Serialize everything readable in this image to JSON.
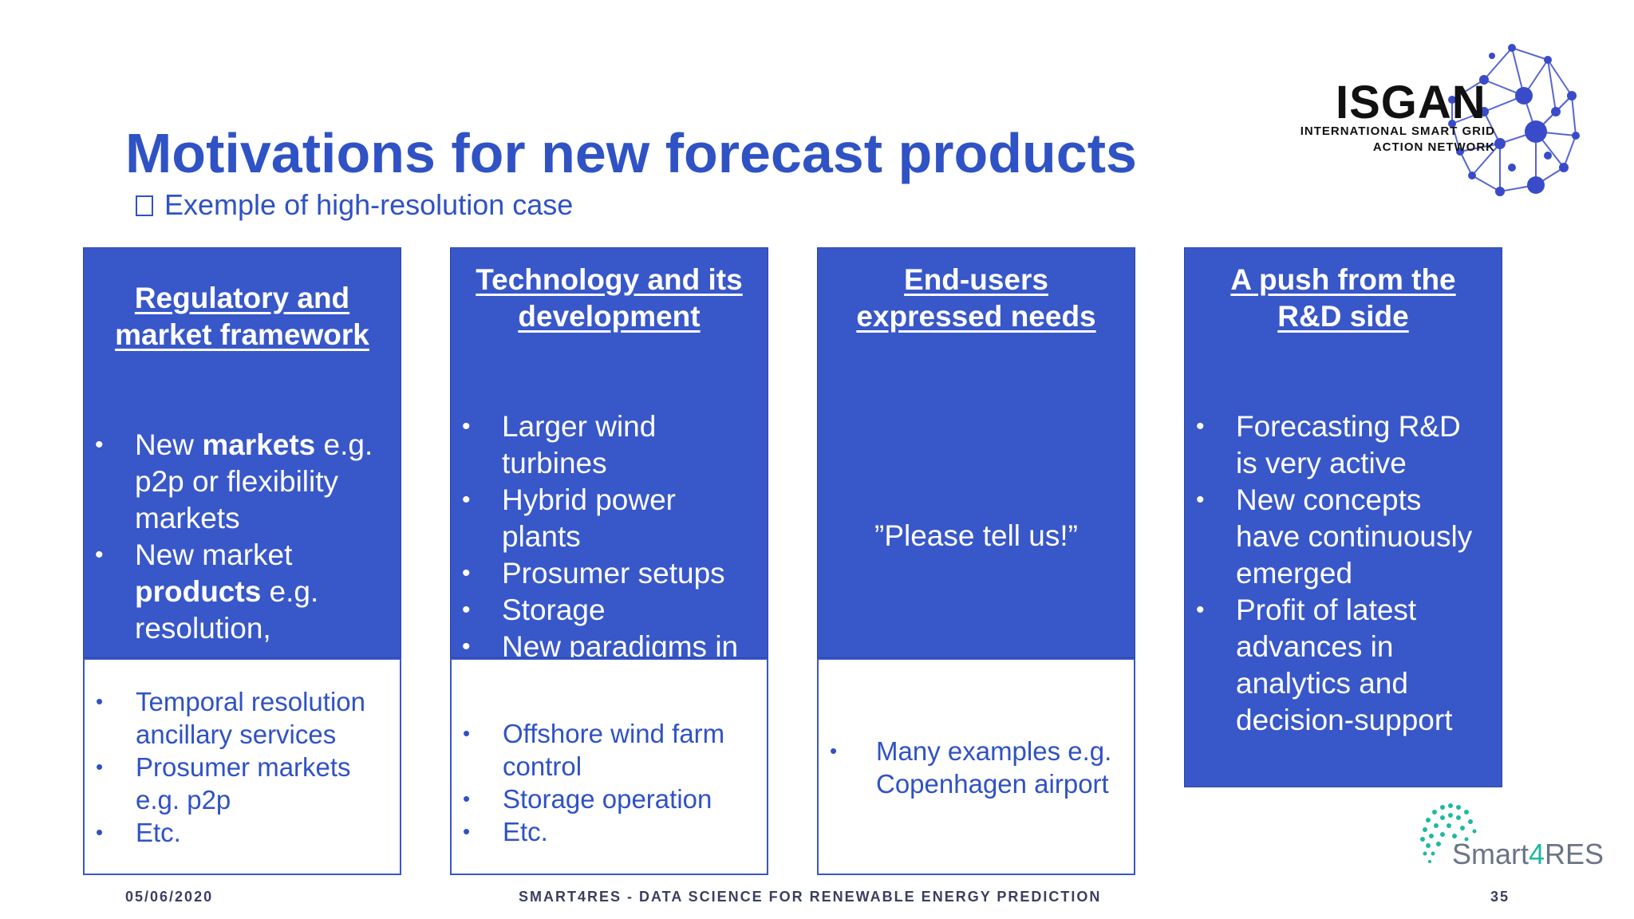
{
  "slide": {
    "title": "Motivations for new forecast products",
    "subtitle": "Exemple of high-resolution case"
  },
  "logo": {
    "name": "ISGAN",
    "tagline_line1": "INTERNATIONAL SMART GRID",
    "tagline_line2": "ACTION NETWORK"
  },
  "columns": [
    {
      "heading_line1": "Regulatory and",
      "heading_line2": "market framework",
      "bullets": [
        {
          "line1_pre": "New ",
          "line1_bold": "markets",
          "line1_post": " e.g.",
          "line2": "p2p or flexibility",
          "line3": "markets"
        },
        {
          "line1": "New market",
          "line2_bold": "products",
          "line2_post": " e.g.",
          "line3": "resolution,"
        }
      ],
      "examples": [
        "Temporal resolution",
        "ancillary services",
        "Prosumer markets",
        "e.g. p2p",
        "Etc."
      ]
    },
    {
      "heading_line1": "Technology and its",
      "heading_line2": "development",
      "bullets": [
        {
          "line1": "Larger wind",
          "line2": "turbines"
        },
        {
          "line1": "Hybrid power",
          "line2": "plants"
        },
        {
          "line1": "Prosumer setups"
        },
        {
          "line1": "Storage"
        },
        {
          "line1": "New paradigms in"
        }
      ],
      "examples": [
        "Offshore wind farm",
        "control",
        "Storage operation",
        "Etc."
      ]
    },
    {
      "heading_line1": "End-users",
      "heading_line2": "expressed needs",
      "quote": "”Please tell us!”",
      "examples": [
        "Many examples e.g.",
        "Copenhagen airport"
      ]
    },
    {
      "heading_line1": "A push from the",
      "heading_line2": "R&D side",
      "bullets": [
        {
          "line1": "Forecasting R&D",
          "line2": "is very active"
        },
        {
          "line1": "New concepts",
          "line2": "have continuously",
          "line3": "emerged"
        },
        {
          "line1": "Profit of latest",
          "line2": "advances in",
          "line3": "analytics and",
          "line4": "decision-support"
        }
      ]
    }
  ],
  "footer": {
    "date": "05/06/2020",
    "center": "SMART4RES - DATA SCIENCE FOR RENEWABLE ENERGY PREDICTION",
    "page": "35"
  },
  "smart4res_logo": {
    "pre": "Smart",
    "four": "4",
    "post": "RES"
  },
  "colors": {
    "accent": "#3857c9",
    "title": "#2f52c4",
    "teal": "#1fb8a0"
  }
}
